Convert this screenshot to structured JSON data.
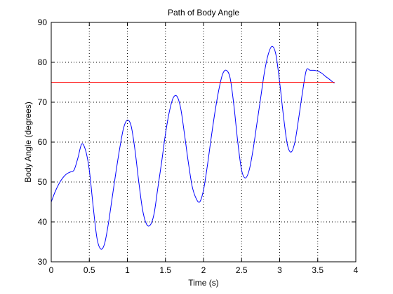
{
  "chart_data": {
    "type": "line",
    "title": "Path of Body Angle",
    "xlabel": "Time (s)",
    "ylabel": "Body Angle (degrees)",
    "xlim": [
      0,
      4
    ],
    "ylim": [
      30,
      90
    ],
    "xticks": [
      "0",
      "0.5",
      "1",
      "1.5",
      "2",
      "2.5",
      "3",
      "3.5",
      "4"
    ],
    "yticks": [
      "30",
      "40",
      "50",
      "60",
      "70",
      "80",
      "90"
    ],
    "grid": true,
    "series": [
      {
        "color": "#0000ff",
        "x": [
          0,
          0.05,
          0.1,
          0.15,
          0.2,
          0.25,
          0.3,
          0.35,
          0.4,
          0.45,
          0.5,
          0.55,
          0.6,
          0.65,
          0.7,
          0.75,
          0.8,
          0.85,
          0.9,
          0.95,
          1.0,
          1.05,
          1.1,
          1.15,
          1.2,
          1.25,
          1.3,
          1.35,
          1.4,
          1.45,
          1.5,
          1.55,
          1.6,
          1.65,
          1.7,
          1.75,
          1.8,
          1.85,
          1.9,
          1.95,
          2.0,
          2.05,
          2.1,
          2.15,
          2.2,
          2.25,
          2.3,
          2.35,
          2.4,
          2.45,
          2.5,
          2.55,
          2.6,
          2.65,
          2.7,
          2.75,
          2.8,
          2.85,
          2.9,
          2.95,
          3.0,
          3.05,
          3.1,
          3.15,
          3.2,
          3.25,
          3.3,
          3.35,
          3.4,
          3.45,
          3.5,
          3.55,
          3.6,
          3.65,
          3.7,
          3.72
        ],
        "y": [
          45,
          47.5,
          49.5,
          51,
          52,
          52.5,
          53,
          56,
          59.5,
          58,
          53,
          44,
          36,
          33.2,
          34.5,
          39.5,
          46,
          52.5,
          58.5,
          63.5,
          65.5,
          64,
          58,
          50,
          43,
          39.5,
          39.2,
          42,
          48.5,
          55,
          62,
          67.5,
          71,
          71.5,
          68.5,
          62,
          55,
          49,
          46,
          45,
          48,
          54,
          61,
          67.5,
          73,
          77,
          78,
          76,
          69,
          60,
          53,
          51,
          53,
          58,
          64.5,
          71,
          77.5,
          82,
          84,
          82,
          75,
          66.5,
          59.5,
          57.5,
          60,
          66,
          72.5,
          78,
          78,
          78,
          77.8,
          77.3,
          76.5,
          75.8,
          75,
          74.8
        ]
      },
      {
        "color": "#ff0000",
        "x": [
          0,
          3.72
        ],
        "y": [
          75,
          75
        ]
      }
    ]
  }
}
